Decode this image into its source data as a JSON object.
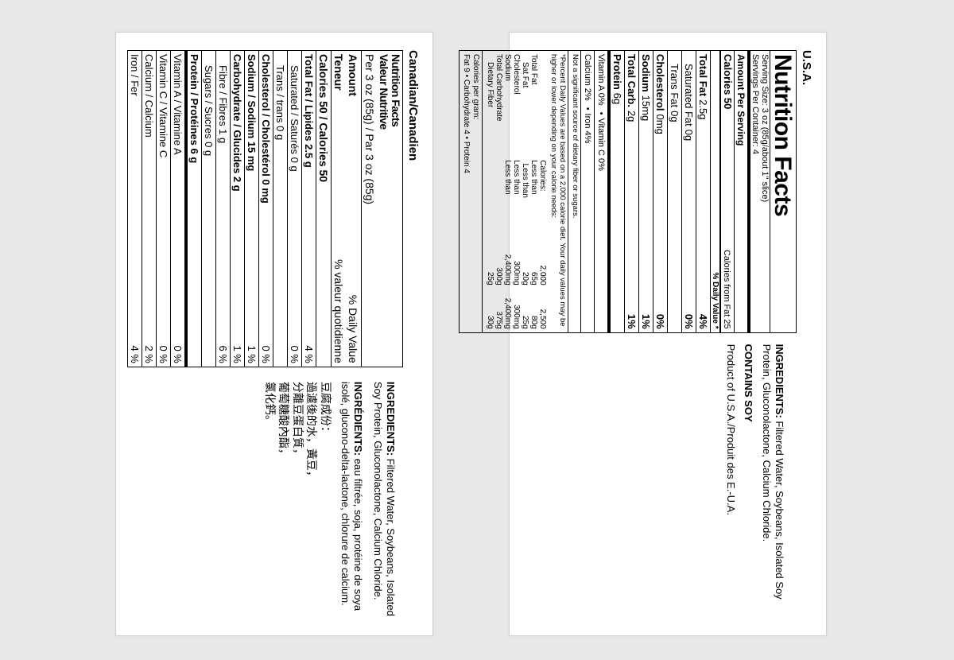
{
  "canadian": {
    "header": "Canadian/Canadien",
    "title1": "Nutrition Facts",
    "title2": "Valeur Nutritive",
    "serving": "Per 3 oz (85g) / Par 3 oz (85g)",
    "amt_l": "Amount",
    "amt_r": "% Daily Value",
    "teneur_l": "Teneur",
    "teneur_r": "% valeur quotidienne",
    "cal": "Calories 50 / Calories 50",
    "rows": [
      {
        "l": "Total Fat / Lipides 2.5 g",
        "r": "4 %",
        "bold": true
      },
      {
        "l": "Saturated / Saturés 0 g",
        "r": "0 %",
        "ind": 1
      },
      {
        "l": "Trans / trans 0 g",
        "r": "",
        "ind": 1
      },
      {
        "l": "Cholesterol / Cholestérol 0 mg",
        "r": "0 %",
        "bold": true
      },
      {
        "l": "Sodium / Sodium 15 mg",
        "r": "1 %",
        "bold": true
      },
      {
        "l": "Carbohydrate / Glucides 2 g",
        "r": "1 %",
        "bold": true
      },
      {
        "l": "Fibre / Fibres 1 g",
        "r": "6 %",
        "ind": 1
      },
      {
        "l": "Sugars / Sucres 0 g",
        "r": "",
        "ind": 1
      },
      {
        "l": "Protein / Protéines 6 g",
        "r": "",
        "bold": true
      },
      {
        "l": "Vitamin A / Vitamine A",
        "r": "0 %"
      },
      {
        "l": "Vitamin C / Vitamine C",
        "r": "0 %"
      },
      {
        "l": "Calcium / Calcium",
        "r": "2 %"
      },
      {
        "l": "Iron / Fer",
        "r": "4 %"
      }
    ],
    "ing_hd_en": "INGREDIENTS:",
    "ing_en": " Filtered Water, Soybeans, Isolated Soy Protein, Gluconolactone, Calcium Chloride.",
    "ing_hd_fr": "INGRÉDIENTS:",
    "ing_fr": " eau filtrée, soja, protéine de soya isolé, glucono-delta-lactone, chlorure de calcium.",
    "cjk1": "豆腐成份：",
    "cjk2": "過濾後的水，黃豆，",
    "cjk3": "分離豆蛋白質，",
    "cjk4": "葡萄糖酸內酯，",
    "cjk5": "氯化鈣。"
  },
  "usa": {
    "header": "U.S.A.",
    "title": "Nutrition Facts",
    "ss1": "Serving Size: 3 oz (85g/about 1\" slice)",
    "ss2": "Servings Per Container: 4",
    "aps": "Amount Per Serving",
    "cal_l": "Calories 50",
    "cal_r": "Calories from Fat 25",
    "dvh": "% Daily Value *",
    "rows": [
      {
        "a": "Total Fat",
        "b": "2.5g",
        "dv": "4%"
      },
      {
        "a": "Saturated Fat",
        "b": "0g",
        "dv": "0%",
        "ind": 1,
        "abold": false
      },
      {
        "a": "Trans Fat",
        "b": "0g",
        "dv": "",
        "ind": 1,
        "abold": false
      },
      {
        "a": "Cholesterol",
        "b": "0mg",
        "dv": "0%"
      },
      {
        "a": "Sodium",
        "b": "15mg",
        "dv": "1%"
      },
      {
        "a": "Total Carb.",
        "b": "2g",
        "dv": "1%"
      },
      {
        "a": "Protein",
        "b": "6g",
        "dv": ""
      }
    ],
    "vitA": "Vitamin A  0%",
    "vitC": "Vitamin C  0%",
    "calc": "Calcium  2%",
    "iron": "Iron  4%",
    "not_sig": "Not a significant source of dietary fiber or sugars.",
    "fn": "*Percent Daily Values are based on a 2,000 calorie diet. Your daily values may be higher or lower depending on your calorie needs:",
    "ref_hdr": {
      "c1": "",
      "c2": "Calories:",
      "c3": "2,000",
      "c4": "2,500"
    },
    "ref": [
      {
        "c1": "Total Fat",
        "c2": "Less than",
        "c3": "65g",
        "c4": "80g"
      },
      {
        "c1": "  Sat Fat",
        "c2": "Less than",
        "c3": "20g",
        "c4": "25g"
      },
      {
        "c1": "Cholesterol",
        "c2": "Less than",
        "c3": "300mg",
        "c4": "300mg"
      },
      {
        "c1": "Sodium",
        "c2": "Less than",
        "c3": "2,400mg",
        "c4": "2,400mg"
      },
      {
        "c1": "Total Carbohydrate",
        "c2": "",
        "c3": "300g",
        "c4": "375g"
      },
      {
        "c1": "  Dietary Fiber",
        "c2": "",
        "c3": "25g",
        "c4": "30g"
      }
    ],
    "cpg1": "Calories per gram:",
    "cpg2": "Fat 9   •   Carbohydrate 4   •   Protein 4",
    "ing_hd": "INGREDIENTS:",
    "ing": " Filtered Water, Soybeans, Isolated Soy Protein, Gluconolactone, Calcium Chloride.",
    "contains": "CONTAINS SOY",
    "origin": "Product of U.S.A./Produit des E.-U.A."
  }
}
